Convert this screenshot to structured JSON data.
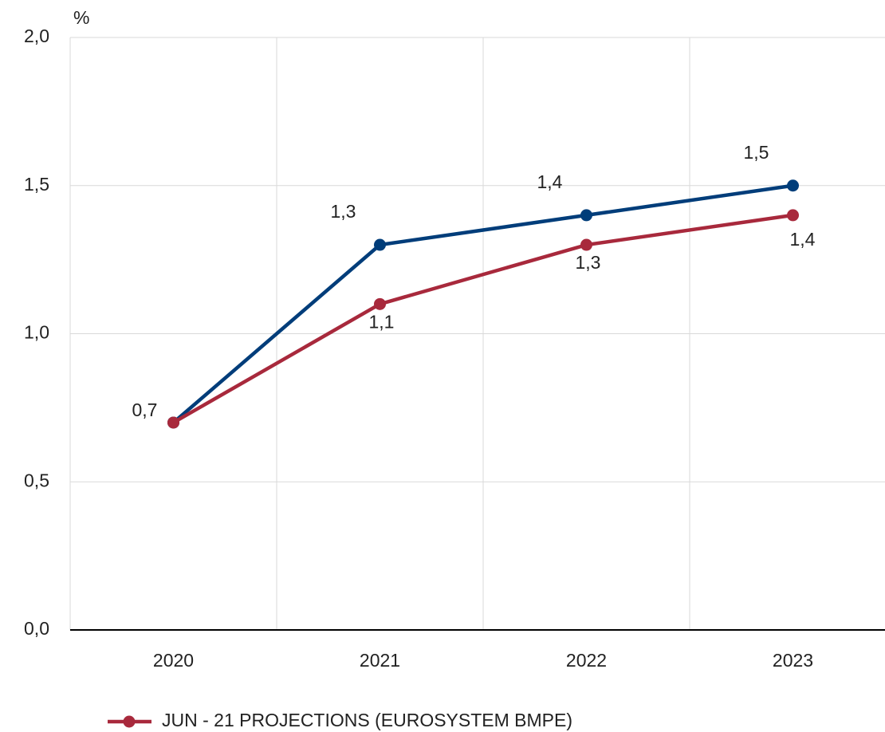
{
  "chart_data": {
    "type": "line",
    "y_label": "%",
    "categories": [
      "2020",
      "2021",
      "2022",
      "2023"
    ],
    "series": [
      {
        "color": "#003d7a",
        "values": [
          0.7,
          1.3,
          1.4,
          1.5
        ],
        "value_labels": [
          null,
          "1,3",
          "1,4",
          "1,5"
        ]
      },
      {
        "name": "JUN - 21 PROJECTIONS (EUROSYSTEM BMPE)",
        "color": "#a8293c",
        "values": [
          0.7,
          1.1,
          1.3,
          1.4
        ],
        "value_labels": [
          "0,7",
          "1,1",
          "1,3",
          "1,4"
        ]
      }
    ],
    "ylim": [
      0,
      2
    ],
    "yticks": [
      {
        "value": 0,
        "label": "0,0"
      },
      {
        "value": 0.5,
        "label": "0,5"
      },
      {
        "value": 1,
        "label": "1,0"
      },
      {
        "value": 1.5,
        "label": "1,5"
      },
      {
        "value": 2,
        "label": "2,0"
      }
    ],
    "grid": true
  }
}
